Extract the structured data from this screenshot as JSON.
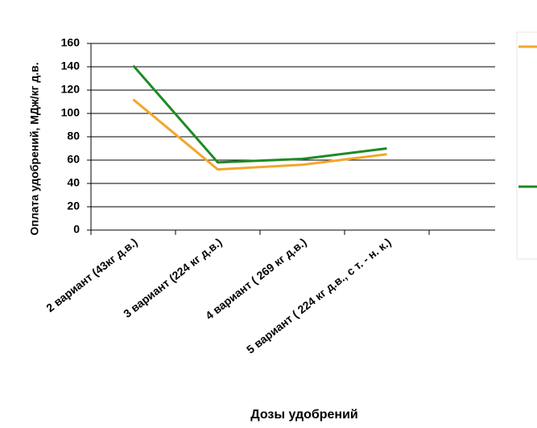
{
  "chart_data": {
    "type": "line",
    "y_label": "Оплата удобрений, МДж/кг д.в.",
    "x_label": "Дозы удобрений",
    "categories": [
      "2 вариант (43кг д.в.)",
      "3 вариант (224 кг д.в.)",
      "4 вариант ( 269 кг д.в.)",
      "5 вариант ( 224 кг д.в., с т. - н. к.)",
      null
    ],
    "series": [
      {
        "color": "#f2a72a",
        "values": [
          112,
          52,
          56,
          65,
          null
        ]
      },
      {
        "color": "#1f8a23",
        "values": [
          141,
          58,
          61,
          70,
          null
        ]
      }
    ],
    "ylim": [
      0,
      160
    ],
    "yticks": [
      0,
      20,
      40,
      60,
      80,
      100,
      120,
      140,
      160
    ],
    "grid": true
  }
}
